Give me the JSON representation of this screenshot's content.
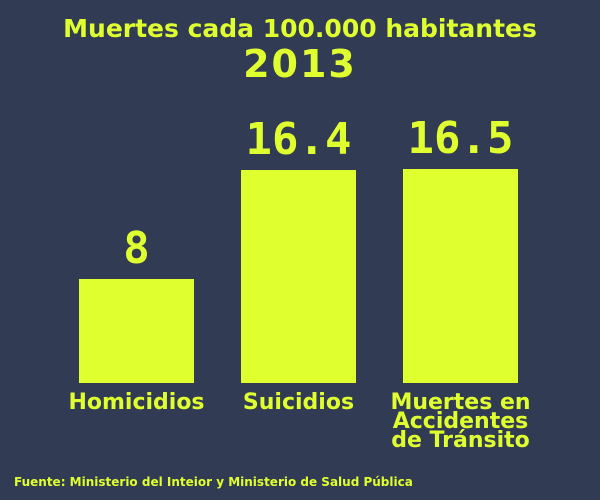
{
  "chart_data": {
    "type": "bar",
    "title": "Muertes cada 100.000 habitantes",
    "subtitle": "2013",
    "categories": [
      "Homicidios",
      "Suicidios",
      "Muertes en Accidentes de Tránsito"
    ],
    "values": [
      8,
      16.4,
      16.5
    ],
    "color": "#e0ff2e",
    "source": "Fuente: Ministerio del Inteior y Ministerio de Salud Pública"
  }
}
